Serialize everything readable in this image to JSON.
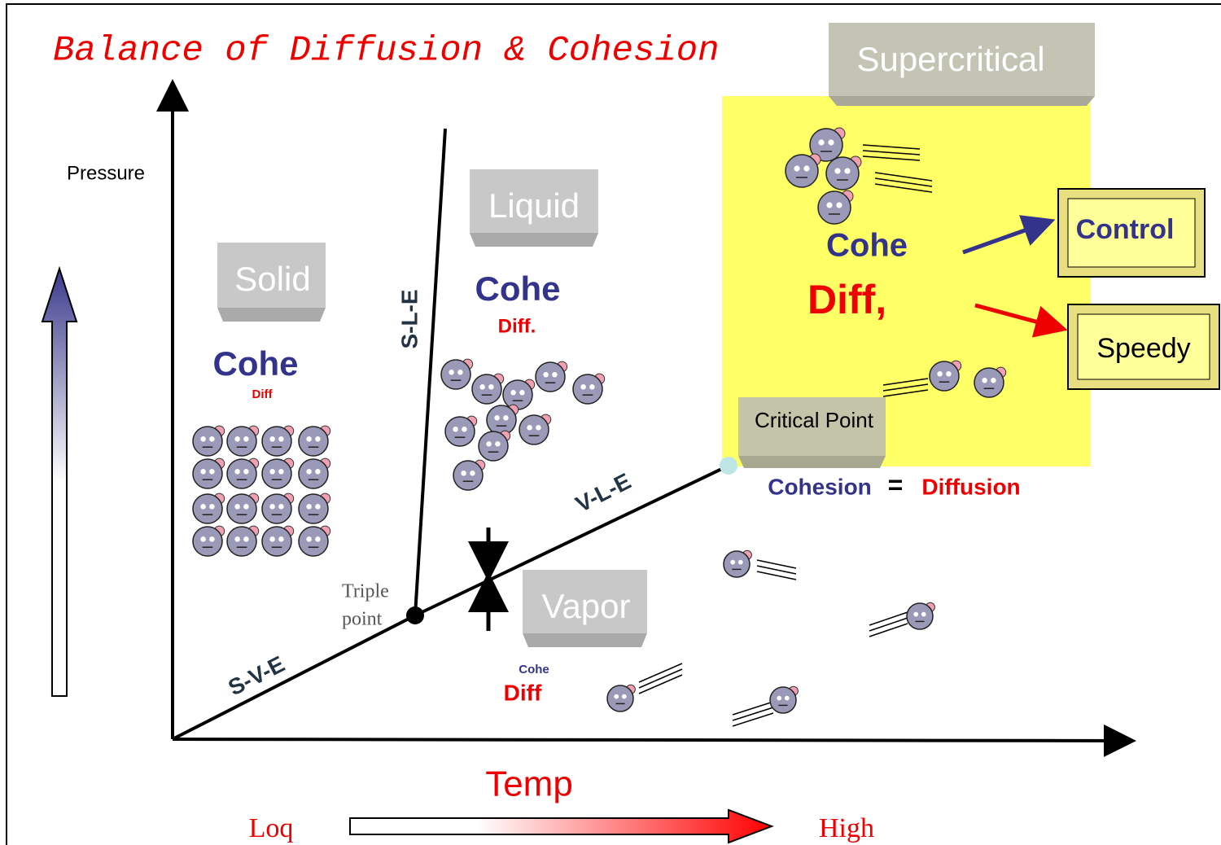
{
  "title": "Balance of Diffusion & Cohesion",
  "axes": {
    "y_label": "Pressure",
    "x_label": "Temp",
    "x_low": "Loq",
    "x_high": "High"
  },
  "regions": {
    "solid": {
      "label": "Solid",
      "cohe": "Cohe",
      "diff": "Diff"
    },
    "liquid": {
      "label": "Liquid",
      "cohe": "Cohe",
      "diff": "Diff."
    },
    "vapor": {
      "label": "Vapor",
      "cohe": "Cohe",
      "diff": "Diff"
    },
    "supercritical": {
      "label": "Supercritical",
      "cohe": "Cohe",
      "diff": "Diff,"
    }
  },
  "boundaries": {
    "sle": "S-L-E",
    "vle": "V-L-E",
    "sve": "S-V-E"
  },
  "points": {
    "triple": [
      "Triple",
      "point"
    ],
    "critical": "Critical Point"
  },
  "equation": {
    "left": "Cohesion",
    "op": "=",
    "right": "Diffusion"
  },
  "outcomes": {
    "control": "Control",
    "speedy": "Speedy"
  }
}
